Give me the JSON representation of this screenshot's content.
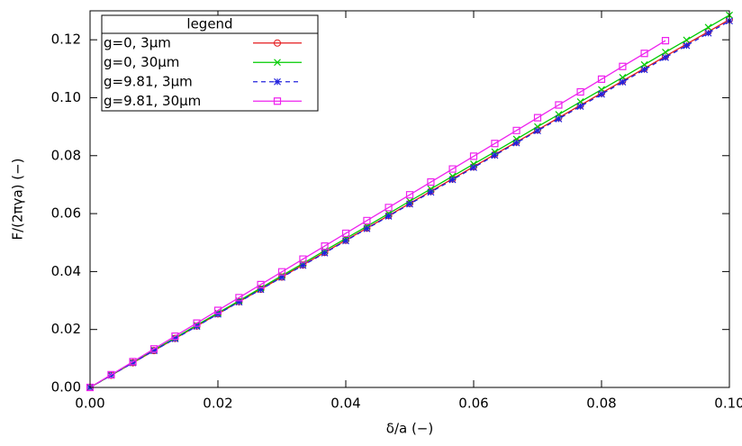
{
  "chart_data": {
    "type": "line",
    "xlabel": "δ/a (−)",
    "ylabel": "F/(2πγa) (−)",
    "legend_title": "legend",
    "legend_position": "top-left",
    "xlim": [
      0,
      0.1
    ],
    "ylim": [
      0,
      0.13
    ],
    "xticks": [
      {
        "value": 0,
        "label": "0.00"
      },
      {
        "value": 0.02,
        "label": "0.02"
      },
      {
        "value": 0.04,
        "label": "0.04"
      },
      {
        "value": 0.06,
        "label": "0.06"
      },
      {
        "value": 0.08,
        "label": "0.08"
      },
      {
        "value": 0.1,
        "label": "0.10"
      }
    ],
    "yticks": [
      {
        "value": 0,
        "label": "0.00"
      },
      {
        "value": 0.02,
        "label": "0.02"
      },
      {
        "value": 0.04,
        "label": "0.04"
      },
      {
        "value": 0.06,
        "label": "0.06"
      },
      {
        "value": 0.08,
        "label": "0.08"
      },
      {
        "value": 0.1,
        "label": "0.10"
      },
      {
        "value": 0.12,
        "label": "0.12"
      }
    ],
    "x": [
      0,
      0.0033,
      0.0067,
      0.01,
      0.0133,
      0.0167,
      0.02,
      0.0233,
      0.0267,
      0.03,
      0.0333,
      0.0367,
      0.04,
      0.0433,
      0.0467,
      0.05,
      0.0533,
      0.0567,
      0.06,
      0.0633,
      0.0667,
      0.07,
      0.0733,
      0.0767,
      0.08,
      0.0833,
      0.0867,
      0.09,
      0.0933,
      0.0967,
      0.1
    ],
    "series": [
      {
        "name": "g=0, 3µm",
        "color": "#e41a1c",
        "marker": "circle",
        "line_style": "solid",
        "values": [
          0,
          0.0042,
          0.0085,
          0.0127,
          0.0169,
          0.0212,
          0.0254,
          0.0296,
          0.0339,
          0.0381,
          0.0423,
          0.0466,
          0.0508,
          0.055,
          0.0593,
          0.0635,
          0.0677,
          0.072,
          0.0762,
          0.0804,
          0.0847,
          0.0889,
          0.0931,
          0.0974,
          0.1016,
          0.1058,
          0.1101,
          0.1143,
          0.1185,
          0.1228,
          0.127
        ]
      },
      {
        "name": "g=0, 30µm",
        "color": "#00cc00",
        "marker": "x",
        "line_style": "solid",
        "values": [
          0,
          0.0042,
          0.0086,
          0.0129,
          0.0171,
          0.0215,
          0.0257,
          0.0299,
          0.0343,
          0.0386,
          0.0428,
          0.0472,
          0.0514,
          0.0556,
          0.06,
          0.0643,
          0.0685,
          0.0729,
          0.0771,
          0.0813,
          0.0857,
          0.09,
          0.0942,
          0.0986,
          0.1028,
          0.107,
          0.1114,
          0.1157,
          0.1199,
          0.1243,
          0.1285
        ]
      },
      {
        "name": "g=9.81, 3µm",
        "color": "#2222dd",
        "marker": "star",
        "line_style": "dashed",
        "values": [
          0,
          0.0042,
          0.0085,
          0.0127,
          0.0168,
          0.0211,
          0.0253,
          0.0295,
          0.0338,
          0.038,
          0.0421,
          0.0464,
          0.0506,
          0.0548,
          0.0591,
          0.0633,
          0.0674,
          0.0717,
          0.0759,
          0.0801,
          0.0844,
          0.0886,
          0.0927,
          0.097,
          0.1012,
          0.1054,
          0.1097,
          0.1139,
          0.118,
          0.1223,
          0.1265
        ]
      },
      {
        "name": "g=9.81, 30µm",
        "color": "#ee22ee",
        "marker": "square",
        "line_style": "solid",
        "values": [
          0,
          0.0044,
          0.0089,
          0.0133,
          0.0177,
          0.0222,
          0.0266,
          0.031,
          0.0355,
          0.0399,
          0.0443,
          0.0488,
          0.0532,
          0.0576,
          0.0621,
          0.0665,
          0.0709,
          0.0754,
          0.0798,
          0.0842,
          0.0887,
          0.0931,
          0.0975,
          0.102,
          0.1064,
          0.1108,
          0.1153,
          0.1197,
          null,
          null,
          null
        ]
      }
    ]
  }
}
